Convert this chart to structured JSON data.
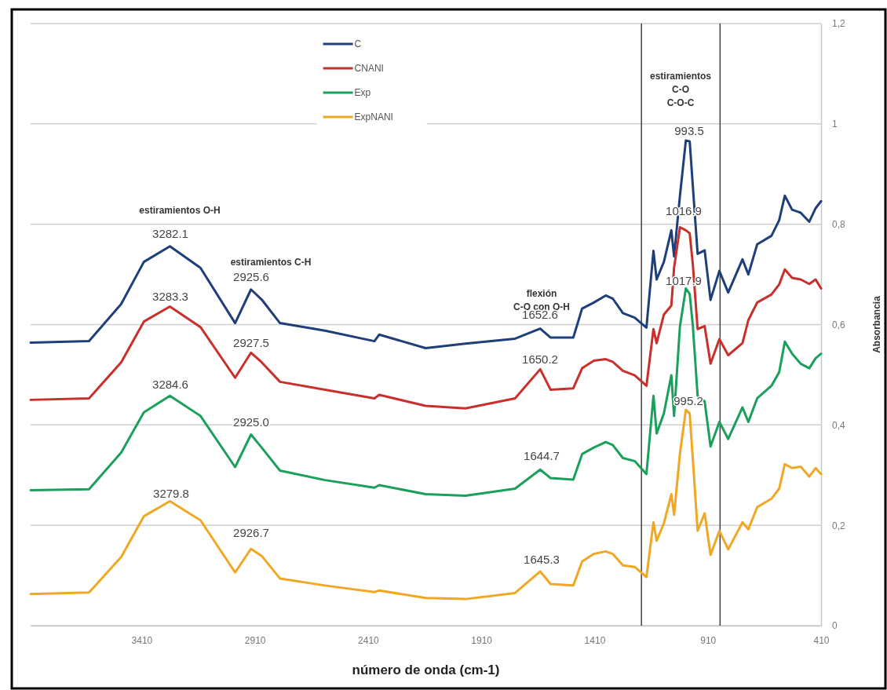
{
  "chart_data": {
    "type": "line",
    "xlabel": "número de onda (cm-1)",
    "ylabel": "Absorbancia",
    "x": [
      3900,
      3642,
      3500,
      3400,
      3285,
      3150,
      2997,
      2927,
      2880,
      2799,
      2600,
      2382,
      2361,
      2156,
      1980,
      1761,
      1650,
      1604,
      1504,
      1465,
      1413,
      1361,
      1330,
      1285,
      1233,
      1181,
      1150,
      1136,
      1104,
      1071,
      1059,
      1033,
      1007,
      990,
      976,
      955,
      924,
      898,
      859,
      820,
      757,
      731,
      692,
      629,
      595,
      570,
      538,
      500,
      462,
      434,
      410
    ],
    "xlim": [
      3900,
      410
    ],
    "xticks": [
      3410,
      2910,
      2410,
      1910,
      1410,
      910,
      410
    ],
    "ylim": [
      0,
      1.2
    ],
    "yticks": [
      0,
      {
        "value": 0.2,
        "label": "0,2"
      },
      {
        "value": 0.4,
        "label": "0,4"
      },
      {
        "value": 0.6,
        "label": "0,6"
      },
      {
        "value": 0.8,
        "label": "0,8"
      },
      1,
      {
        "value": 1.2,
        "label": "1,2"
      }
    ],
    "grid": "y",
    "legend": "top",
    "line_style": "solid",
    "marker": "none",
    "series": [
      {
        "name": "C",
        "color": "#1f3f7a",
        "values": [
          0.564,
          0.567,
          0.641,
          0.725,
          0.756,
          0.713,
          0.603,
          0.67,
          0.65,
          0.603,
          0.588,
          0.567,
          0.58,
          0.553,
          0.562,
          0.572,
          0.592,
          0.574,
          0.574,
          0.632,
          0.644,
          0.658,
          0.652,
          0.623,
          0.614,
          0.594,
          0.747,
          0.69,
          0.725,
          0.788,
          0.736,
          0.857,
          0.967,
          0.965,
          0.875,
          0.741,
          0.748,
          0.649,
          0.707,
          0.664,
          0.73,
          0.7,
          0.76,
          0.777,
          0.808,
          0.857,
          0.829,
          0.823,
          0.805,
          0.832,
          0.846
        ]
      },
      {
        "name": "CNANI",
        "color": "#c9302c",
        "values": [
          0.45,
          0.453,
          0.525,
          0.606,
          0.636,
          0.595,
          0.494,
          0.544,
          0.525,
          0.486,
          0.47,
          0.453,
          0.46,
          0.438,
          0.433,
          0.453,
          0.511,
          0.47,
          0.473,
          0.513,
          0.528,
          0.531,
          0.526,
          0.508,
          0.499,
          0.478,
          0.591,
          0.563,
          0.62,
          0.638,
          0.713,
          0.794,
          0.788,
          0.782,
          0.719,
          0.591,
          0.597,
          0.522,
          0.571,
          0.539,
          0.563,
          0.609,
          0.644,
          0.66,
          0.68,
          0.71,
          0.693,
          0.69,
          0.681,
          0.69,
          0.672
        ]
      },
      {
        "name": "Exp",
        "color": "#1aa05a",
        "values": [
          0.27,
          0.272,
          0.345,
          0.425,
          0.458,
          0.418,
          0.316,
          0.381,
          0.355,
          0.309,
          0.29,
          0.275,
          0.28,
          0.262,
          0.259,
          0.273,
          0.311,
          0.294,
          0.291,
          0.342,
          0.355,
          0.366,
          0.36,
          0.334,
          0.328,
          0.302,
          0.458,
          0.383,
          0.423,
          0.499,
          0.418,
          0.597,
          0.672,
          0.661,
          0.597,
          0.458,
          0.447,
          0.357,
          0.406,
          0.372,
          0.435,
          0.406,
          0.453,
          0.478,
          0.505,
          0.566,
          0.542,
          0.522,
          0.513,
          0.533,
          0.542
        ]
      },
      {
        "name": "ExpNANI",
        "color": "#f0a824",
        "values": [
          0.063,
          0.066,
          0.137,
          0.218,
          0.248,
          0.21,
          0.106,
          0.153,
          0.139,
          0.094,
          0.08,
          0.067,
          0.07,
          0.055,
          0.053,
          0.065,
          0.108,
          0.083,
          0.08,
          0.128,
          0.143,
          0.148,
          0.143,
          0.12,
          0.117,
          0.097,
          0.206,
          0.169,
          0.204,
          0.262,
          0.221,
          0.343,
          0.43,
          0.423,
          0.331,
          0.189,
          0.224,
          0.141,
          0.189,
          0.152,
          0.206,
          0.192,
          0.236,
          0.253,
          0.273,
          0.322,
          0.314,
          0.317,
          0.297,
          0.314,
          0.302
        ]
      }
    ],
    "ref_lines": [
      {
        "axis": "x",
        "value": 1203,
        "color": "#404040"
      },
      {
        "axis": "x",
        "value": 856,
        "color": "#404040"
      }
    ],
    "annotations": [
      "estiramientos O-H",
      "estiramientos C-H",
      "flexión\nC-O con O-H",
      "estiramientos\nC-O\nC-O-C",
      "3282.1",
      "2925.6",
      "3283.3",
      "2927.5",
      "3284.6",
      "2925.0",
      "3279.8",
      "2926.7",
      "1652.6",
      "1650.2",
      "1644.7",
      "1645.3",
      "993.5",
      "1016.9",
      "1017.9",
      "995.2"
    ]
  }
}
